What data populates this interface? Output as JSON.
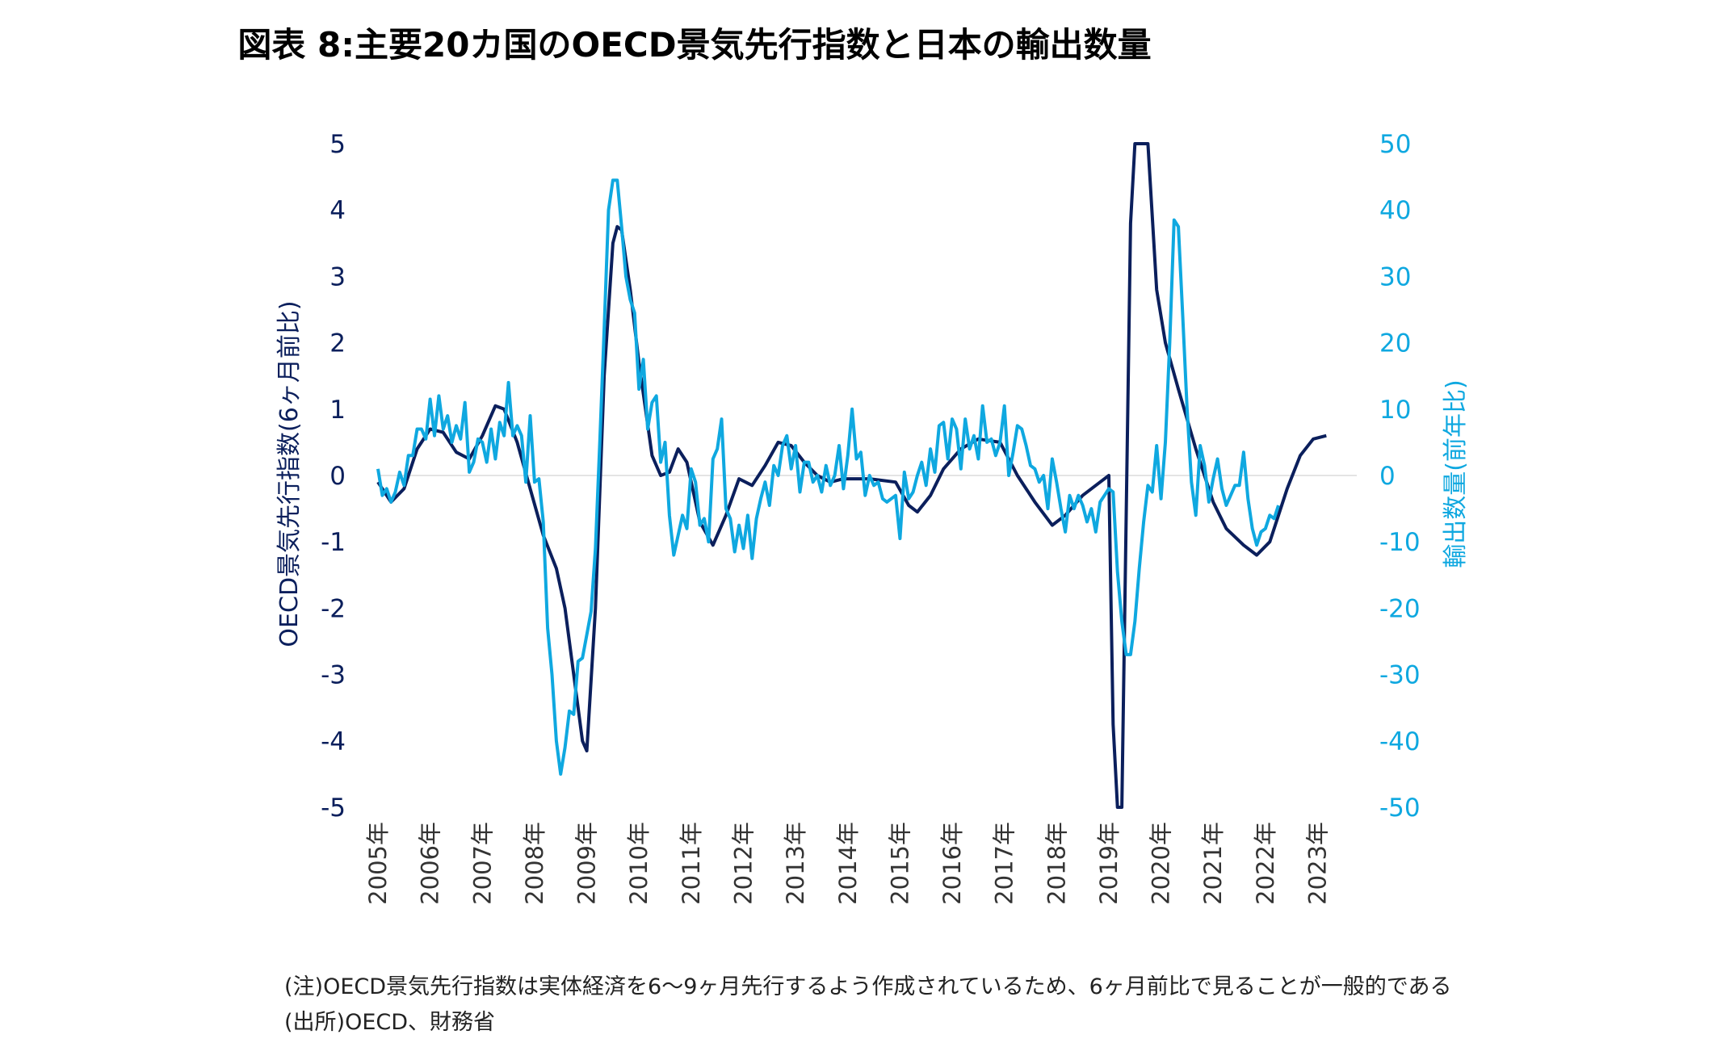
{
  "chart_data": {
    "type": "line",
    "title": "図表 8:主要20カ国のOECD景気先行指数と日本の輸出数量",
    "y_left_label": "OECD景気先行指数(6ヶ月前比)",
    "y_right_label": "輸出数量(前年比)",
    "y_left_range": [
      -5,
      5
    ],
    "y_right_range": [
      -50,
      50
    ],
    "y_left_ticks": [
      "5",
      "4",
      "3",
      "2",
      "1",
      "0",
      "-1",
      "-2",
      "-3",
      "-4",
      "-5"
    ],
    "y_right_ticks": [
      "50",
      "40",
      "30",
      "20",
      "10",
      "0",
      "-10",
      "-20",
      "-30",
      "-40",
      "-50"
    ],
    "x_ticks": [
      "2005年",
      "2006年",
      "2007年",
      "2008年",
      "2009年",
      "2010年",
      "2011年",
      "2012年",
      "2013年",
      "2014年",
      "2015年",
      "2016年",
      "2017年",
      "2018年",
      "2019年",
      "2020年",
      "2021年",
      "2022年",
      "2023年"
    ],
    "x_range": [
      "2005-01",
      "2023-10"
    ],
    "grid": false,
    "colors": {
      "oecd": "#0b1f5c",
      "exports": "#0fa8e0"
    },
    "series": [
      {
        "axis": "left",
        "color": "#0b1f5c",
        "points": [
          [
            "2005-01",
            -0.1
          ],
          [
            "2005-04",
            -0.4
          ],
          [
            "2005-07",
            -0.2
          ],
          [
            "2005-10",
            0.4
          ],
          [
            "2006-01",
            0.7
          ],
          [
            "2006-04",
            0.65
          ],
          [
            "2006-07",
            0.35
          ],
          [
            "2006-10",
            0.25
          ],
          [
            "2007-01",
            0.6
          ],
          [
            "2007-04",
            1.05
          ],
          [
            "2007-06",
            1.0
          ],
          [
            "2007-09",
            0.5
          ],
          [
            "2007-12",
            -0.2
          ],
          [
            "2008-03",
            -0.9
          ],
          [
            "2008-06",
            -1.4
          ],
          [
            "2008-08",
            -2.0
          ],
          [
            "2008-10",
            -3.0
          ],
          [
            "2008-12",
            -4.0
          ],
          [
            "2009-01",
            -4.15
          ],
          [
            "2009-03",
            -2.0
          ],
          [
            "2009-05",
            1.5
          ],
          [
            "2009-07",
            3.5
          ],
          [
            "2009-08",
            3.75
          ],
          [
            "2009-09",
            3.7
          ],
          [
            "2009-11",
            2.8
          ],
          [
            "2010-01",
            1.7
          ],
          [
            "2010-04",
            0.3
          ],
          [
            "2010-06",
            0.0
          ],
          [
            "2010-08",
            0.05
          ],
          [
            "2010-10",
            0.4
          ],
          [
            "2010-12",
            0.2
          ],
          [
            "2011-03",
            -0.7
          ],
          [
            "2011-06",
            -1.05
          ],
          [
            "2011-09",
            -0.6
          ],
          [
            "2011-12",
            -0.05
          ],
          [
            "2012-03",
            -0.15
          ],
          [
            "2012-06",
            0.15
          ],
          [
            "2012-09",
            0.5
          ],
          [
            "2012-12",
            0.45
          ],
          [
            "2013-03",
            0.2
          ],
          [
            "2013-06",
            0.0
          ],
          [
            "2013-09",
            -0.1
          ],
          [
            "2013-12",
            -0.05
          ],
          [
            "2014-06",
            -0.05
          ],
          [
            "2014-12",
            -0.1
          ],
          [
            "2015-03",
            -0.45
          ],
          [
            "2015-05",
            -0.55
          ],
          [
            "2015-08",
            -0.3
          ],
          [
            "2015-11",
            0.1
          ],
          [
            "2016-03",
            0.4
          ],
          [
            "2016-07",
            0.55
          ],
          [
            "2016-12",
            0.5
          ],
          [
            "2017-04",
            0.0
          ],
          [
            "2017-08",
            -0.4
          ],
          [
            "2017-12",
            -0.75
          ],
          [
            "2018-03",
            -0.6
          ],
          [
            "2018-07",
            -0.3
          ],
          [
            "2018-11",
            -0.1
          ],
          [
            "2019-01",
            0.0
          ],
          [
            "2019-02",
            -3.75
          ],
          [
            "2019-03",
            -5.0
          ],
          [
            "2019-04",
            -5.0
          ],
          [
            "2019-06",
            3.8
          ],
          [
            "2019-07",
            5.0
          ],
          [
            "2019-09",
            5.0
          ],
          [
            "2019-10",
            5.0
          ],
          [
            "2019-12",
            2.8
          ],
          [
            "2020-02",
            2.0
          ],
          [
            "2020-05",
            1.3
          ],
          [
            "2020-09",
            0.4
          ],
          [
            "2021-01",
            -0.4
          ],
          [
            "2021-04",
            -0.8
          ],
          [
            "2021-08",
            -1.05
          ],
          [
            "2021-11",
            -1.2
          ],
          [
            "2022-02",
            -1.0
          ],
          [
            "2022-06",
            -0.2
          ],
          [
            "2022-09",
            0.3
          ],
          [
            "2022-12",
            0.55
          ],
          [
            "2023-03",
            0.6
          ]
        ]
      },
      {
        "axis": "right",
        "color": "#0fa8e0",
        "points": [
          [
            "2005-01",
            1.0
          ],
          [
            "2005-02",
            -3.0
          ],
          [
            "2005-03",
            -2.0
          ],
          [
            "2005-04",
            -4.0
          ],
          [
            "2005-05",
            -2.5
          ],
          [
            "2005-06",
            0.5
          ],
          [
            "2005-07",
            -1.5
          ],
          [
            "2005-08",
            3.0
          ],
          [
            "2005-09",
            3.0
          ],
          [
            "2005-10",
            7.0
          ],
          [
            "2005-11",
            7.0
          ],
          [
            "2005-12",
            5.5
          ],
          [
            "2006-01",
            11.5
          ],
          [
            "2006-02",
            6.0
          ],
          [
            "2006-03",
            12.0
          ],
          [
            "2006-04",
            7.0
          ],
          [
            "2006-05",
            9.0
          ],
          [
            "2006-06",
            5.0
          ],
          [
            "2006-07",
            7.5
          ],
          [
            "2006-08",
            5.5
          ],
          [
            "2006-09",
            11.0
          ],
          [
            "2006-10",
            0.5
          ],
          [
            "2006-11",
            2.0
          ],
          [
            "2006-12",
            5.5
          ],
          [
            "2007-01",
            5.0
          ],
          [
            "2007-02",
            2.0
          ],
          [
            "2007-03",
            7.0
          ],
          [
            "2007-04",
            2.5
          ],
          [
            "2007-05",
            8.0
          ],
          [
            "2007-06",
            6.0
          ],
          [
            "2007-07",
            14.0
          ],
          [
            "2007-08",
            6.0
          ],
          [
            "2007-09",
            7.5
          ],
          [
            "2007-10",
            6.0
          ],
          [
            "2007-11",
            -1.0
          ],
          [
            "2007-12",
            9.0
          ],
          [
            "2008-01",
            -1.0
          ],
          [
            "2008-02",
            -0.5
          ],
          [
            "2008-03",
            -7.0
          ],
          [
            "2008-04",
            -23.0
          ],
          [
            "2008-05",
            -30.0
          ],
          [
            "2008-06",
            -40.0
          ],
          [
            "2008-07",
            -45.0
          ],
          [
            "2008-08",
            -41.0
          ],
          [
            "2008-09",
            -35.5
          ],
          [
            "2008-10",
            -36.0
          ],
          [
            "2008-11",
            -28.0
          ],
          [
            "2008-12",
            -27.5
          ],
          [
            "2009-01",
            -24.0
          ],
          [
            "2009-02",
            -20.5
          ],
          [
            "2009-03",
            -11.0
          ],
          [
            "2009-04",
            5.0
          ],
          [
            "2009-05",
            22.0
          ],
          [
            "2009-06",
            40.0
          ],
          [
            "2009-07",
            44.5
          ],
          [
            "2009-08",
            44.5
          ],
          [
            "2009-09",
            37.5
          ],
          [
            "2009-10",
            30.0
          ],
          [
            "2009-11",
            26.5
          ],
          [
            "2009-12",
            24.5
          ],
          [
            "2010-01",
            13.0
          ],
          [
            "2010-02",
            17.5
          ],
          [
            "2010-03",
            7.0
          ],
          [
            "2010-04",
            11.0
          ],
          [
            "2010-05",
            12.0
          ],
          [
            "2010-06",
            2.0
          ],
          [
            "2010-07",
            5.0
          ],
          [
            "2010-08",
            -6.0
          ],
          [
            "2010-09",
            -12.0
          ],
          [
            "2010-10",
            -9.0
          ],
          [
            "2010-11",
            -6.0
          ],
          [
            "2010-12",
            -8.0
          ],
          [
            "2011-01",
            1.0
          ],
          [
            "2011-02",
            -1.0
          ],
          [
            "2011-03",
            -7.5
          ],
          [
            "2011-04",
            -6.5
          ],
          [
            "2011-05",
            -10.0
          ],
          [
            "2011-06",
            2.5
          ],
          [
            "2011-07",
            4.0
          ],
          [
            "2011-08",
            8.5
          ],
          [
            "2011-09",
            -5.0
          ],
          [
            "2011-10",
            -6.5
          ],
          [
            "2011-11",
            -11.5
          ],
          [
            "2011-12",
            -7.5
          ],
          [
            "2012-01",
            -11.0
          ],
          [
            "2012-02",
            -6.0
          ],
          [
            "2012-03",
            -12.5
          ],
          [
            "2012-04",
            -6.5
          ],
          [
            "2012-05",
            -3.5
          ],
          [
            "2012-06",
            -1.0
          ],
          [
            "2012-07",
            -4.5
          ],
          [
            "2012-08",
            1.5
          ],
          [
            "2012-09",
            0.0
          ],
          [
            "2012-10",
            4.5
          ],
          [
            "2012-11",
            6.0
          ],
          [
            "2012-12",
            1.0
          ],
          [
            "2013-01",
            4.5
          ],
          [
            "2013-02",
            -2.5
          ],
          [
            "2013-03",
            2.0
          ],
          [
            "2013-04",
            2.0
          ],
          [
            "2013-05",
            -1.0
          ],
          [
            "2013-06",
            0.0
          ],
          [
            "2013-07",
            -2.5
          ],
          [
            "2013-08",
            1.5
          ],
          [
            "2013-09",
            -1.5
          ],
          [
            "2013-10",
            0.0
          ],
          [
            "2013-11",
            4.5
          ],
          [
            "2013-12",
            -2.0
          ],
          [
            "2014-01",
            3.0
          ],
          [
            "2014-02",
            10.0
          ],
          [
            "2014-03",
            2.5
          ],
          [
            "2014-04",
            3.5
          ],
          [
            "2014-05",
            -3.0
          ],
          [
            "2014-06",
            0.0
          ],
          [
            "2014-07",
            -1.5
          ],
          [
            "2014-08",
            -1.0
          ],
          [
            "2014-09",
            -3.5
          ],
          [
            "2014-10",
            -4.0
          ],
          [
            "2014-11",
            -3.5
          ],
          [
            "2014-12",
            -3.0
          ],
          [
            "2015-01",
            -9.5
          ],
          [
            "2015-02",
            0.5
          ],
          [
            "2015-03",
            -3.5
          ],
          [
            "2015-04",
            -2.5
          ],
          [
            "2015-05",
            0.0
          ],
          [
            "2015-06",
            2.0
          ],
          [
            "2015-07",
            -1.5
          ],
          [
            "2015-08",
            4.0
          ],
          [
            "2015-09",
            0.5
          ],
          [
            "2015-10",
            7.5
          ],
          [
            "2015-11",
            8.0
          ],
          [
            "2015-12",
            2.5
          ],
          [
            "2016-01",
            8.5
          ],
          [
            "2016-02",
            7.0
          ],
          [
            "2016-03",
            1.0
          ],
          [
            "2016-04",
            8.5
          ],
          [
            "2016-05",
            4.0
          ],
          [
            "2016-06",
            6.0
          ],
          [
            "2016-07",
            2.5
          ],
          [
            "2016-08",
            10.5
          ],
          [
            "2016-09",
            5.0
          ],
          [
            "2016-10",
            5.5
          ],
          [
            "2016-11",
            3.0
          ],
          [
            "2016-12",
            5.0
          ],
          [
            "2017-01",
            10.5
          ],
          [
            "2017-02",
            0.0
          ],
          [
            "2017-03",
            3.5
          ],
          [
            "2017-04",
            7.5
          ],
          [
            "2017-05",
            7.0
          ],
          [
            "2017-06",
            4.5
          ],
          [
            "2017-07",
            1.5
          ],
          [
            "2017-08",
            1.0
          ],
          [
            "2017-09",
            -1.0
          ],
          [
            "2017-10",
            0.0
          ],
          [
            "2017-11",
            -5.0
          ],
          [
            "2017-12",
            2.5
          ],
          [
            "2018-01",
            -1.0
          ],
          [
            "2018-02",
            -5.0
          ],
          [
            "2018-03",
            -8.5
          ],
          [
            "2018-04",
            -3.0
          ],
          [
            "2018-05",
            -5.0
          ],
          [
            "2018-06",
            -3.0
          ],
          [
            "2018-07",
            -4.5
          ],
          [
            "2018-08",
            -7.0
          ],
          [
            "2018-09",
            -5.0
          ],
          [
            "2018-10",
            -8.5
          ],
          [
            "2018-11",
            -4.0
          ],
          [
            "2018-12",
            -3.0
          ],
          [
            "2019-01",
            -2.0
          ],
          [
            "2019-02",
            -2.5
          ],
          [
            "2019-03",
            -14.5
          ],
          [
            "2019-04",
            -22.0
          ],
          [
            "2019-05",
            -27.0
          ],
          [
            "2019-06",
            -27.0
          ],
          [
            "2019-07",
            -22.0
          ],
          [
            "2019-08",
            -14.0
          ],
          [
            "2019-09",
            -7.0
          ],
          [
            "2019-10",
            -1.5
          ],
          [
            "2019-11",
            -2.5
          ],
          [
            "2019-12",
            4.5
          ],
          [
            "2020-01",
            -3.5
          ],
          [
            "2020-02",
            5.0
          ],
          [
            "2020-03",
            20.0
          ],
          [
            "2020-04",
            38.5
          ],
          [
            "2020-05",
            37.5
          ],
          [
            "2020-06",
            24.0
          ],
          [
            "2020-07",
            10.0
          ],
          [
            "2020-08",
            -1.0
          ],
          [
            "2020-09",
            -6.0
          ],
          [
            "2020-10",
            4.5
          ],
          [
            "2020-11",
            1.5
          ],
          [
            "2020-12",
            -4.0
          ],
          [
            "2021-01",
            -0.5
          ],
          [
            "2021-02",
            2.5
          ],
          [
            "2021-03",
            -2.0
          ],
          [
            "2021-04",
            -4.5
          ],
          [
            "2021-05",
            -3.0
          ],
          [
            "2021-06",
            -1.5
          ],
          [
            "2021-07",
            -1.5
          ],
          [
            "2021-08",
            3.5
          ],
          [
            "2021-09",
            -3.5
          ],
          [
            "2021-10",
            -8.0
          ],
          [
            "2021-11",
            -10.5
          ],
          [
            "2021-12",
            -8.5
          ],
          [
            "2022-01",
            -8.0
          ],
          [
            "2022-02",
            -6.0
          ],
          [
            "2022-03",
            -6.5
          ],
          [
            "2022-04",
            -4.5
          ]
        ]
      }
    ],
    "notes": [
      "(注)OECD景気先行指数は実体経済を6～9ヶ月先行するよう作成されているため、6ヶ月前比で見ることが一般的である",
      "(出所)OECD、財務省"
    ]
  }
}
